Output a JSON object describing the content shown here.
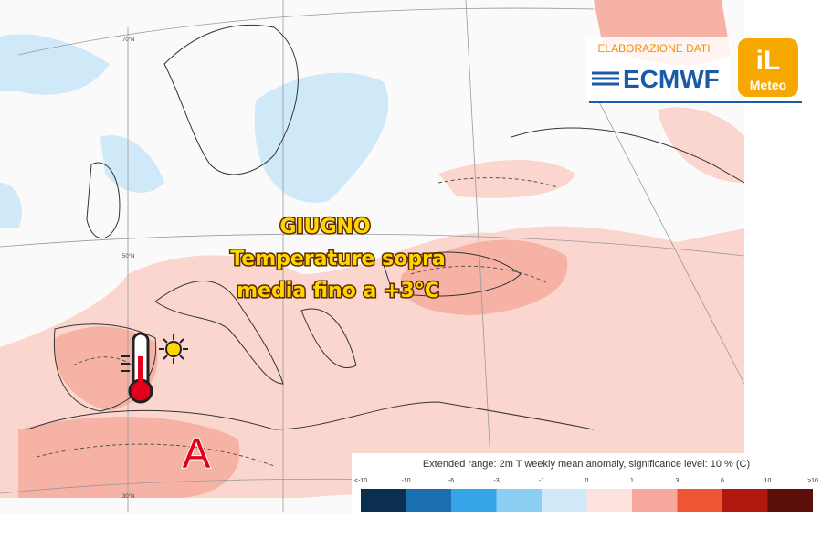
{
  "overlay": {
    "title": "GIUGNO",
    "lines": [
      "Temperature sopra",
      "media fino a +3°C"
    ],
    "marker": "A"
  },
  "logo": {
    "credit": "ELABORAZIONE DATI",
    "source": "ECMWF",
    "brand": "iL",
    "brand_sub": "Meteo"
  },
  "legend": {
    "title": "Extended range: 2m T weekly mean anomaly, significance level: 10 % (C)",
    "labels": [
      "<-10",
      "-10",
      "-6",
      "-3",
      "-1",
      "0",
      "1",
      "3",
      "6",
      "10",
      ">10"
    ],
    "colors": [
      "#0b2f4e",
      "#1a6fb0",
      "#35a3e6",
      "#8ccdf3",
      "#cfe9f9",
      "#fde3df",
      "#f7a79b",
      "#ee5535",
      "#b0180e",
      "#5c0e08"
    ]
  },
  "latitude_labels": [
    "70°N",
    "50°N",
    "30°N"
  ]
}
